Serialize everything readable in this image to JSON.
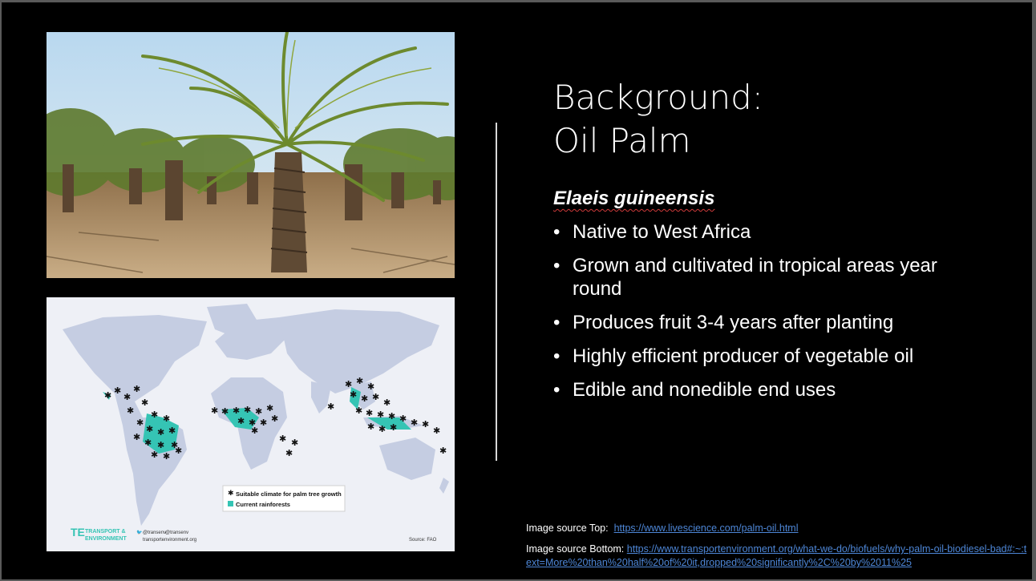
{
  "slide": {
    "title_line1": "Background:",
    "title_line2": "Oil Palm",
    "species": "Elaeis guineensis",
    "bullets": [
      "Native to West Africa",
      "Grown and cultivated in tropical areas year round",
      "Produces fruit 3-4 years after planting",
      "Highly efficient producer of vegetable oil",
      "Edible and nonedible end uses"
    ],
    "bullet_glyph": "•",
    "source_top_label": "Image source Top:",
    "source_top_link": "https://www.livescience.com/palm-oil.html",
    "source_bottom_label": "Image source Bottom:",
    "source_bottom_link": "https://www.transportenvironment.org/what-we-do/biofuels/why-palm-oil-biodiesel-bad#:~:text=More%20than%20half%20of%20it,dropped%20significantly%2C%20by%2011%25"
  },
  "map": {
    "legend_suitable": "Suitable climate for palm tree growth",
    "legend_rainforest": "Current rainforests",
    "logo_line1": "TRANSPORT &",
    "logo_line2": "ENVIRONMENT",
    "social_twitter": "@transenv",
    "social_facebook": "@transenv",
    "social_site": "transportenvironment.org",
    "source": "Source: FAO"
  },
  "colors": {
    "background": "#000000",
    "text": "#ffffff",
    "link": "#4d86d6",
    "rainforest": "#35c4b4",
    "land": "#c5cde2",
    "ocean": "#eef0f6"
  }
}
